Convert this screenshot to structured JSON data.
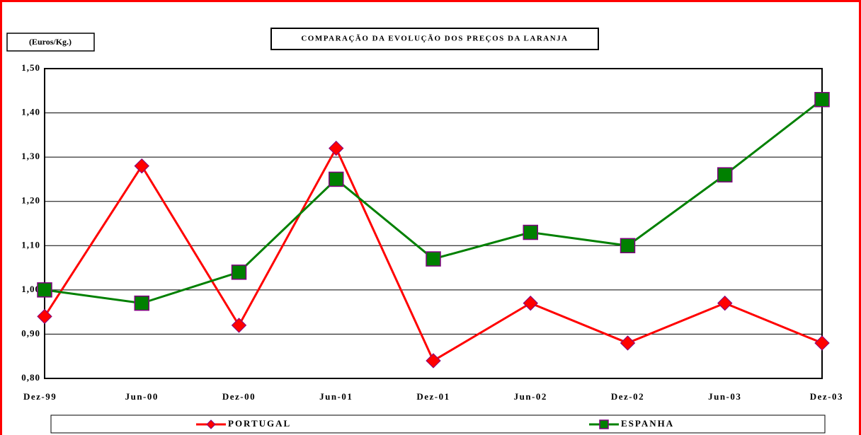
{
  "chart_data": {
    "type": "line",
    "title": "COMPARAÇÃO DA EVOLUÇÃO DOS PREÇOS DA LARANJA",
    "y_label": "(Euros/Kg.)",
    "categories": [
      "Dez-99",
      "Jun-00",
      "Dez-00",
      "Jun-01",
      "Dez-01",
      "Jun-02",
      "Dez-02",
      "Jun-03",
      "Dez-03"
    ],
    "series": [
      {
        "name": "PORTUGAL",
        "color": "#ff0000",
        "marker": "diamond",
        "values": [
          0.94,
          1.28,
          0.92,
          1.32,
          0.84,
          0.97,
          0.88,
          0.97,
          0.88
        ]
      },
      {
        "name": "ESPANHA",
        "color": "#008000",
        "marker": "square",
        "values": [
          1.0,
          0.97,
          1.04,
          1.25,
          1.07,
          1.13,
          1.1,
          1.26,
          1.43
        ]
      }
    ],
    "ylim": [
      0.8,
      1.5
    ],
    "yticks": [
      {
        "value": 0.8,
        "label": "0,80"
      },
      {
        "value": 0.9,
        "label": "0,90"
      },
      {
        "value": 1.0,
        "label": "1,00"
      },
      {
        "value": 1.1,
        "label": "1,10"
      },
      {
        "value": 1.2,
        "label": "1,20"
      },
      {
        "value": 1.3,
        "label": "1,30"
      },
      {
        "value": 1.4,
        "label": "1,40"
      },
      {
        "value": 1.5,
        "label": "1,50"
      }
    ],
    "grid": true,
    "legend": "bottom"
  }
}
